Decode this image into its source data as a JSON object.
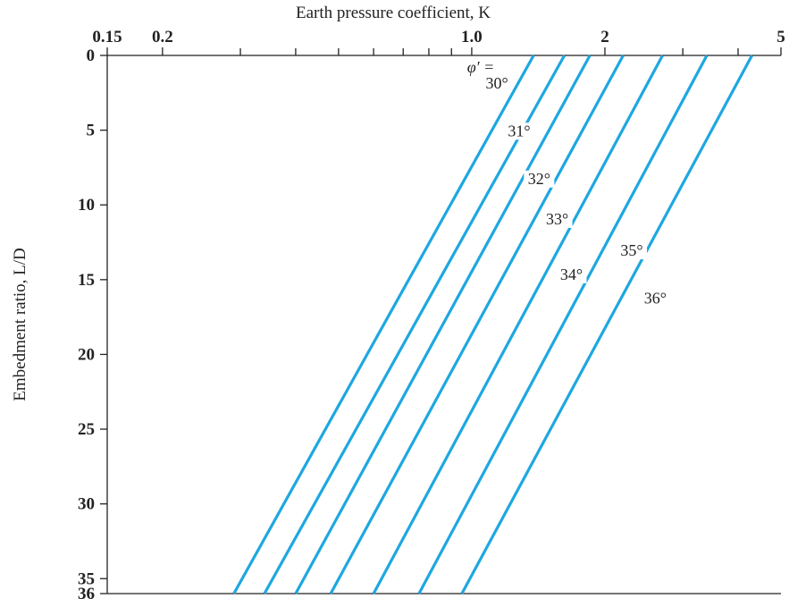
{
  "chart_data": {
    "type": "line",
    "title": "Earth pressure coefficient, K",
    "xlabel": "Earth pressure coefficient, K",
    "ylabel": "Embedment ratio, L/D",
    "x_scale": "log",
    "xlim": [
      0.15,
      5
    ],
    "ylim": [
      0,
      36
    ],
    "y_inverted": true,
    "x_tick_labels": [
      {
        "value": 0.15,
        "label": "0.15"
      },
      {
        "value": 0.2,
        "label": "0.2"
      },
      {
        "value": 1.0,
        "label": "1.0"
      },
      {
        "value": 2,
        "label": "2"
      },
      {
        "value": 5,
        "label": "5"
      }
    ],
    "x_minor_ticks": [
      0.3,
      0.4,
      0.5,
      0.6,
      0.7,
      0.8,
      0.9,
      3,
      4
    ],
    "y_ticks": [
      0,
      5,
      10,
      15,
      20,
      25,
      30,
      35,
      36
    ],
    "legend_title": "φ′ =",
    "line_color": "#1ea7e1",
    "series": [
      {
        "name": "30°",
        "points": [
          {
            "x": 1.38,
            "y": 0
          },
          {
            "x": 0.29,
            "y": 36
          }
        ]
      },
      {
        "name": "31°",
        "points": [
          {
            "x": 1.62,
            "y": 0
          },
          {
            "x": 0.34,
            "y": 36
          }
        ]
      },
      {
        "name": "32°",
        "points": [
          {
            "x": 1.85,
            "y": 0
          },
          {
            "x": 0.4,
            "y": 36
          }
        ]
      },
      {
        "name": "33°",
        "points": [
          {
            "x": 2.2,
            "y": 0
          },
          {
            "x": 0.48,
            "y": 36
          }
        ]
      },
      {
        "name": "34°",
        "points": [
          {
            "x": 2.7,
            "y": 0
          },
          {
            "x": 0.6,
            "y": 36
          }
        ]
      },
      {
        "name": "35°",
        "points": [
          {
            "x": 3.4,
            "y": 0
          },
          {
            "x": 0.76,
            "y": 36
          }
        ]
      },
      {
        "name": "36°",
        "points": [
          {
            "x": 4.3,
            "y": 0
          },
          {
            "x": 0.95,
            "y": 36
          }
        ]
      }
    ],
    "annotations": [
      {
        "text": "30°",
        "x": 1.14,
        "y": 2.2
      },
      {
        "text": "31°",
        "x": 1.28,
        "y": 5.4
      },
      {
        "text": "32°",
        "x": 1.42,
        "y": 8.6
      },
      {
        "text": "33°",
        "x": 1.56,
        "y": 11.3
      },
      {
        "text": "34°",
        "x": 1.68,
        "y": 15.0
      },
      {
        "text": "35°",
        "x": 2.3,
        "y": 13.4
      },
      {
        "text": "36°",
        "x": 2.6,
        "y": 16.6
      }
    ]
  }
}
